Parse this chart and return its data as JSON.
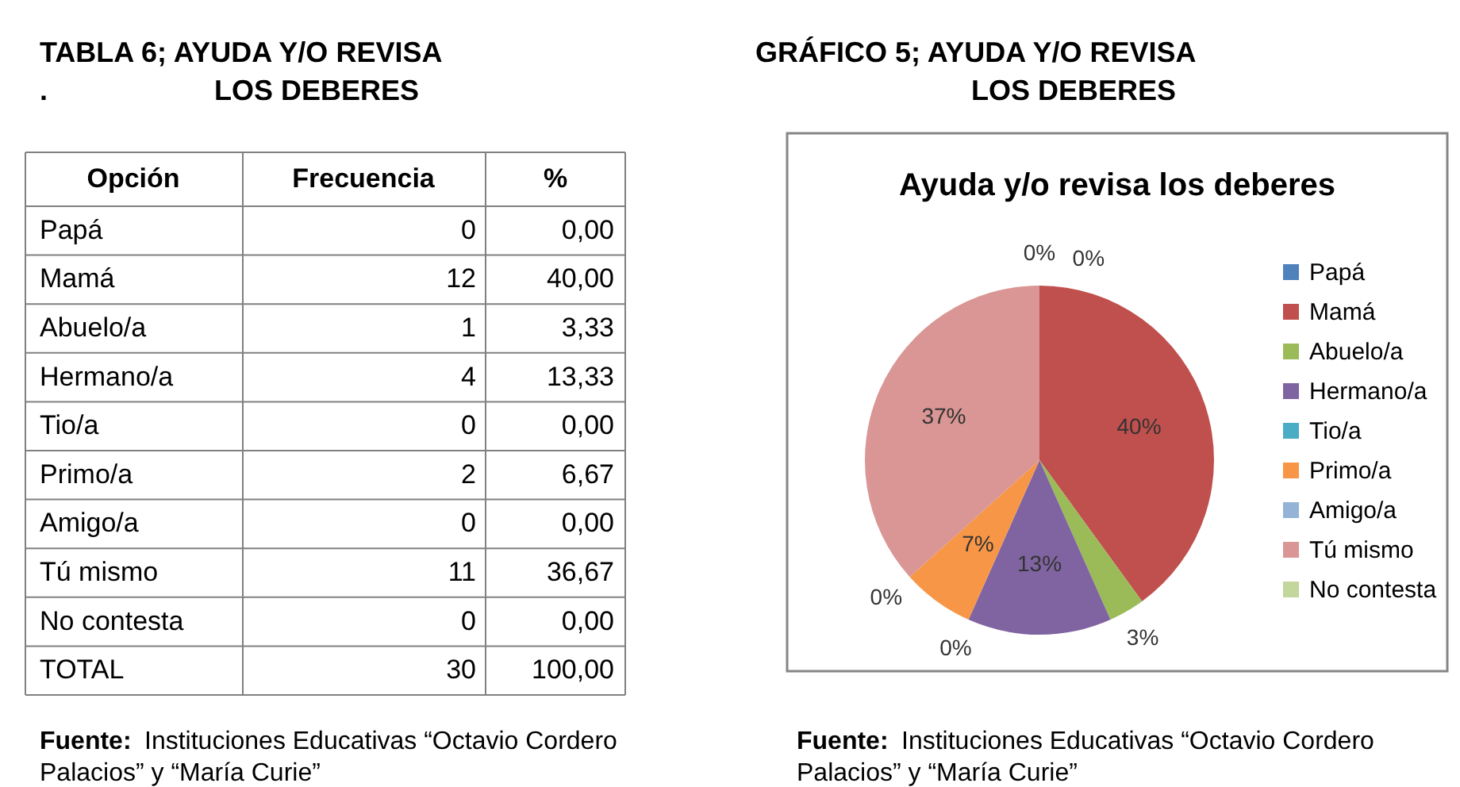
{
  "chart_data": {
    "type": "pie",
    "title": "Ayuda y/o revisa los deberes",
    "categories": [
      "Papá",
      "Mamá",
      "Abuelo/a",
      "Hermano/a",
      "Tio/a",
      "Primo/a",
      "Amigo/a",
      "Tú mismo",
      "No contesta"
    ],
    "values": [
      0,
      40.0,
      3.33,
      13.33,
      0,
      6.67,
      0,
      36.67,
      0
    ],
    "colors": [
      "#4f81bd",
      "#c0504d",
      "#9bbb59",
      "#8064a2",
      "#4bacc6",
      "#f79646",
      "#95b3d7",
      "#d99694",
      "#c3d69b"
    ],
    "value_labels": [
      "0%",
      "40%",
      "3%",
      "13%",
      "0%",
      "7%",
      "0%",
      "37%",
      "0%"
    ],
    "legend": "right",
    "annotations": [
      "TABLA 6; AYUDA Y/O REVISA",
      ".",
      "LOS DEBERES",
      "GRÁFICO 5; AYUDA Y/O REVISA",
      "LOS DEBERES",
      "Opción",
      "Frecuencia",
      "%",
      "0",
      "12",
      "1",
      "4",
      "0",
      "2",
      "0",
      "11",
      "0",
      "0,00",
      "40,00",
      "3,33",
      "13,33",
      "0,00",
      "6,67",
      "0,00",
      "36,67",
      "0,00",
      "TOTAL",
      "30",
      "100,00",
      "Fuente: Instituciones Educativas “Octavio Cordero Palacios” y “María Curie”",
      "Fuente: Instituciones Educativas “Octavio Cordero Palacios” y “María Curie”"
    ]
  }
}
